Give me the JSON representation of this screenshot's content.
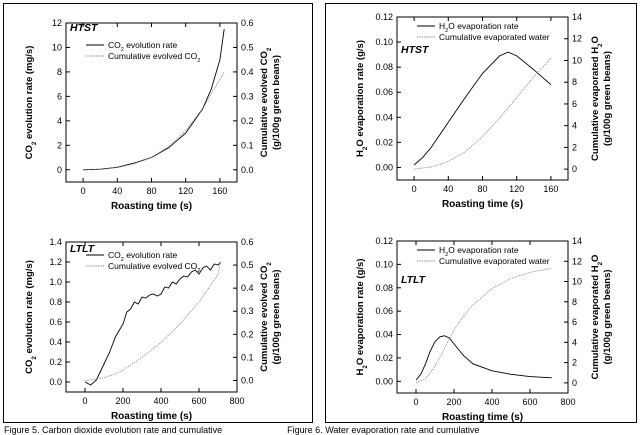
{
  "caption": {
    "left": "Figure 5. Carbon dioxide evolution rate and cumulative",
    "right": "Figure 6. Water evaporation rate and cumulative"
  },
  "chart_data": [
    {
      "id": "co2-htst",
      "type": "line",
      "panel_label": "HTST",
      "xlabel": "Roasting time (s)",
      "ylabel": "CO2 evolution rate (mg/s)",
      "ylabel_parts": [
        "CO",
        "2",
        " evolution rate (mg/s)"
      ],
      "y2label_line1_parts": [
        "Cumulative evolved CO",
        "2"
      ],
      "y2label_line2": "(g/100g green beans)",
      "xlim": [
        -20,
        180
      ],
      "ylim": [
        -1,
        12
      ],
      "y2lim": [
        -0.05,
        0.6
      ],
      "xticks": [
        0,
        40,
        80,
        120,
        160
      ],
      "yticks": [
        0,
        2,
        4,
        6,
        8,
        10,
        12
      ],
      "y2ticks": [
        0.0,
        0.1,
        0.2,
        0.3,
        0.4,
        0.5,
        0.6
      ],
      "yticklabels": [
        "0",
        "2",
        "4",
        "6",
        "8",
        "10",
        "12"
      ],
      "y2ticklabels": [
        "0.0",
        "0.1",
        "0.2",
        "0.3",
        "0.4",
        "0.5",
        "0.6"
      ],
      "legend_position": "top-left",
      "series": [
        {
          "name": "CO2 evolution rate",
          "name_parts": [
            "CO",
            "2",
            " evolution rate"
          ],
          "axis": "left",
          "style": "solid",
          "x": [
            0,
            20,
            40,
            60,
            80,
            100,
            120,
            140,
            150,
            160,
            165
          ],
          "y": [
            0,
            0.05,
            0.2,
            0.55,
            1.0,
            1.8,
            3.0,
            5.0,
            6.6,
            9.0,
            11.5
          ]
        },
        {
          "name": "Cumulative evolved CO2",
          "name_parts": [
            "Cumulative evolved CO",
            "2"
          ],
          "axis": "right",
          "style": "dotted",
          "x": [
            0,
            20,
            40,
            60,
            80,
            100,
            120,
            140,
            150,
            160,
            165
          ],
          "y": [
            0,
            0.002,
            0.01,
            0.025,
            0.05,
            0.095,
            0.16,
            0.25,
            0.31,
            0.37,
            0.4
          ]
        }
      ]
    },
    {
      "id": "co2-ltlt",
      "type": "line",
      "panel_label": "LTLT",
      "xlabel": "Roasting time (s)",
      "ylabel": "CO2 evolution rate (mg/s)",
      "ylabel_parts": [
        "CO",
        "2",
        " evolution rate (mg/s)"
      ],
      "y2label_line1_parts": [
        "Cumulative evolved CO",
        "2"
      ],
      "y2label_line2": "(g/100g green beans)",
      "xlim": [
        -100,
        800
      ],
      "ylim": [
        -0.1,
        1.4
      ],
      "y2lim": [
        -0.05,
        0.6
      ],
      "xticks": [
        0,
        200,
        400,
        600,
        800
      ],
      "yticks": [
        0.0,
        0.2,
        0.4,
        0.6,
        0.8,
        1.0,
        1.2,
        1.4
      ],
      "y2ticks": [
        0.0,
        0.1,
        0.2,
        0.3,
        0.4,
        0.5,
        0.6
      ],
      "yticklabels": [
        "0.0",
        "0.2",
        "0.4",
        "0.6",
        "0.8",
        "1.0",
        "1.2",
        "1.4"
      ],
      "y2ticklabels": [
        "0.0",
        "0.1",
        "0.2",
        "0.3",
        "0.4",
        "0.5",
        "0.6"
      ],
      "legend_position": "top-left",
      "series": [
        {
          "name": "CO2 evolution rate",
          "name_parts": [
            "CO",
            "2",
            " evolution rate"
          ],
          "axis": "left",
          "style": "solid",
          "x": [
            0,
            30,
            60,
            80,
            100,
            130,
            160,
            200,
            220,
            240,
            260,
            280,
            300,
            320,
            340,
            360,
            380,
            400,
            420,
            440,
            460,
            480,
            500,
            520,
            540,
            560,
            580,
            600,
            620,
            640,
            660,
            680,
            700,
            715
          ],
          "y": [
            0.0,
            -0.03,
            0.02,
            0.1,
            0.18,
            0.3,
            0.45,
            0.58,
            0.7,
            0.73,
            0.8,
            0.78,
            0.85,
            0.84,
            0.87,
            0.88,
            0.86,
            0.88,
            0.95,
            0.94,
            1.0,
            0.98,
            1.03,
            1.06,
            1.05,
            1.1,
            1.12,
            1.08,
            1.14,
            1.16,
            1.12,
            1.18,
            1.17,
            1.2
          ]
        },
        {
          "name": "Cumulative evolved CO2",
          "name_parts": [
            "Cumulative evolved CO",
            "2"
          ],
          "axis": "right",
          "style": "dotted",
          "x": [
            0,
            50,
            100,
            150,
            200,
            300,
            400,
            500,
            600,
            700,
            715
          ],
          "y": [
            0.0,
            0.005,
            0.012,
            0.025,
            0.045,
            0.1,
            0.165,
            0.245,
            0.34,
            0.46,
            0.52
          ]
        }
      ]
    },
    {
      "id": "h2o-htst",
      "type": "line",
      "panel_label": "HTST",
      "xlabel": "Roasting time (s)",
      "ylabel": "H2O evaporation rate (g/s)",
      "ylabel_parts": [
        "H",
        "2",
        "O evaporation rate (g/s)"
      ],
      "y2label_line1_parts": [
        "Cumulative evaporated H",
        "2",
        "O"
      ],
      "y2label_line2": "(g/100g green beans)",
      "xlim": [
        -20,
        180
      ],
      "ylim": [
        -0.01,
        0.12
      ],
      "y2lim": [
        -1,
        14
      ],
      "xticks": [
        0,
        40,
        80,
        120,
        160
      ],
      "yticks": [
        0.0,
        0.02,
        0.04,
        0.06,
        0.08,
        0.1,
        0.12
      ],
      "y2ticks": [
        0,
        2,
        4,
        6,
        8,
        10,
        12,
        14
      ],
      "yticklabels": [
        "0.00",
        "0.02",
        "0.04",
        "0.06",
        "0.08",
        "0.10",
        "0.12"
      ],
      "y2ticklabels": [
        "0",
        "2",
        "4",
        "6",
        "8",
        "10",
        "12",
        "14"
      ],
      "legend_position": "top-left",
      "series": [
        {
          "name": "H2O evaporation rate",
          "name_parts": [
            "H",
            "2",
            "O evaporation rate"
          ],
          "axis": "left",
          "style": "solid",
          "x": [
            0,
            10,
            20,
            40,
            60,
            80,
            100,
            110,
            120,
            140,
            160
          ],
          "y": [
            0.002,
            0.008,
            0.016,
            0.036,
            0.056,
            0.075,
            0.089,
            0.092,
            0.089,
            0.078,
            0.066
          ]
        },
        {
          "name": "Cumulative evaporated water",
          "axis": "right",
          "style": "dotted",
          "x": [
            0,
            20,
            40,
            60,
            80,
            100,
            120,
            140,
            160
          ],
          "y": [
            0,
            0.2,
            0.7,
            1.6,
            3.0,
            4.7,
            6.6,
            8.5,
            10.2
          ]
        }
      ]
    },
    {
      "id": "h2o-ltlt",
      "type": "line",
      "panel_label": "LTLT",
      "xlabel": "Roasting time (s)",
      "ylabel": "H2O evaporation rate (g/s)",
      "ylabel_parts": [
        "H",
        "2",
        "O evaporation rate (g/s)"
      ],
      "y2label_line1_parts": [
        "Cumulative evaporated H",
        "2",
        "O"
      ],
      "y2label_line2": "(g/100g green beans)",
      "xlim": [
        -100,
        800
      ],
      "ylim": [
        -0.01,
        0.12
      ],
      "y2lim": [
        -1,
        14
      ],
      "xticks": [
        0,
        200,
        400,
        600,
        800
      ],
      "yticks": [
        0.0,
        0.02,
        0.04,
        0.06,
        0.08,
        0.1,
        0.12
      ],
      "y2ticks": [
        0,
        2,
        4,
        6,
        8,
        10,
        12,
        14
      ],
      "yticklabels": [
        "0.00",
        "0.02",
        "0.04",
        "0.06",
        "0.08",
        "0.10",
        "0.12"
      ],
      "y2ticklabels": [
        "0",
        "2",
        "4",
        "6",
        "8",
        "10",
        "12",
        "14"
      ],
      "legend_position": "top-left",
      "series": [
        {
          "name": "H2O evaporation rate",
          "name_parts": [
            "H",
            "2",
            "O evaporation rate"
          ],
          "axis": "left",
          "style": "solid",
          "x": [
            0,
            25,
            50,
            75,
            100,
            125,
            150,
            175,
            200,
            250,
            300,
            400,
            500,
            600,
            715
          ],
          "y": [
            0.001,
            0.006,
            0.015,
            0.026,
            0.034,
            0.038,
            0.039,
            0.037,
            0.032,
            0.022,
            0.015,
            0.009,
            0.006,
            0.004,
            0.003
          ]
        },
        {
          "name": "Cumulative evaporated water",
          "axis": "right",
          "style": "dotted",
          "x": [
            0,
            50,
            100,
            150,
            200,
            250,
            300,
            400,
            500,
            600,
            715
          ],
          "y": [
            0,
            0.4,
            1.6,
            3.4,
            5.2,
            6.6,
            7.7,
            9.3,
            10.3,
            10.9,
            11.3
          ]
        }
      ]
    }
  ]
}
